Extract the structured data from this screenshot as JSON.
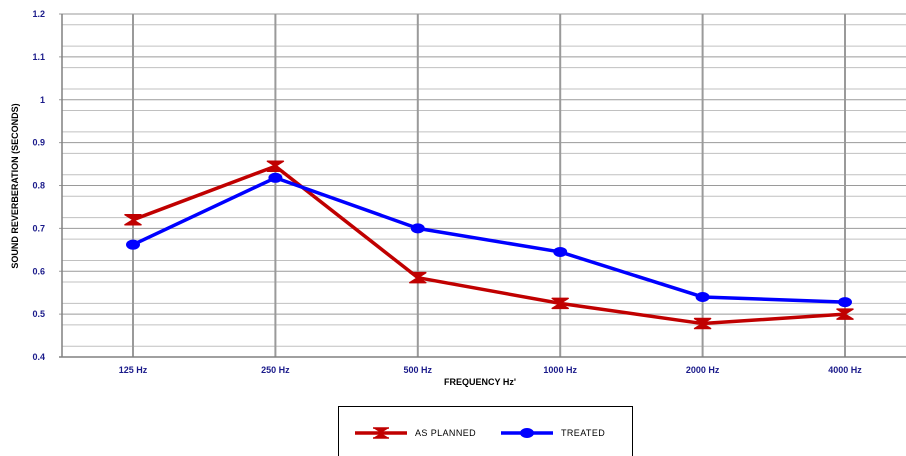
{
  "chart_data": {
    "type": "line",
    "title": "",
    "xlabel": "FREQUENCY Hz'",
    "ylabel": "SOUND REVERBERATION (SECONDS)",
    "categories": [
      "125 Hz",
      "250 Hz",
      "500 Hz",
      "1000 Hz",
      "2000 Hz",
      "4000 Hz"
    ],
    "ylim": [
      0.4,
      1.2
    ],
    "yticks": [
      "0.4",
      "0.5",
      "0.6",
      "0.7",
      "0.8",
      "0.9",
      "1",
      "1.1",
      "1.2"
    ],
    "grid": true,
    "legend_position": "bottom",
    "series": [
      {
        "name": "AS PLANNED",
        "color": "#c00000",
        "marker": "bowtie",
        "values": [
          0.72,
          0.845,
          0.585,
          0.525,
          0.478,
          0.5
        ]
      },
      {
        "name": "TREATED",
        "color": "#0000ff",
        "marker": "circle",
        "values": [
          0.662,
          0.818,
          0.7,
          0.645,
          0.54,
          0.528
        ]
      }
    ]
  }
}
